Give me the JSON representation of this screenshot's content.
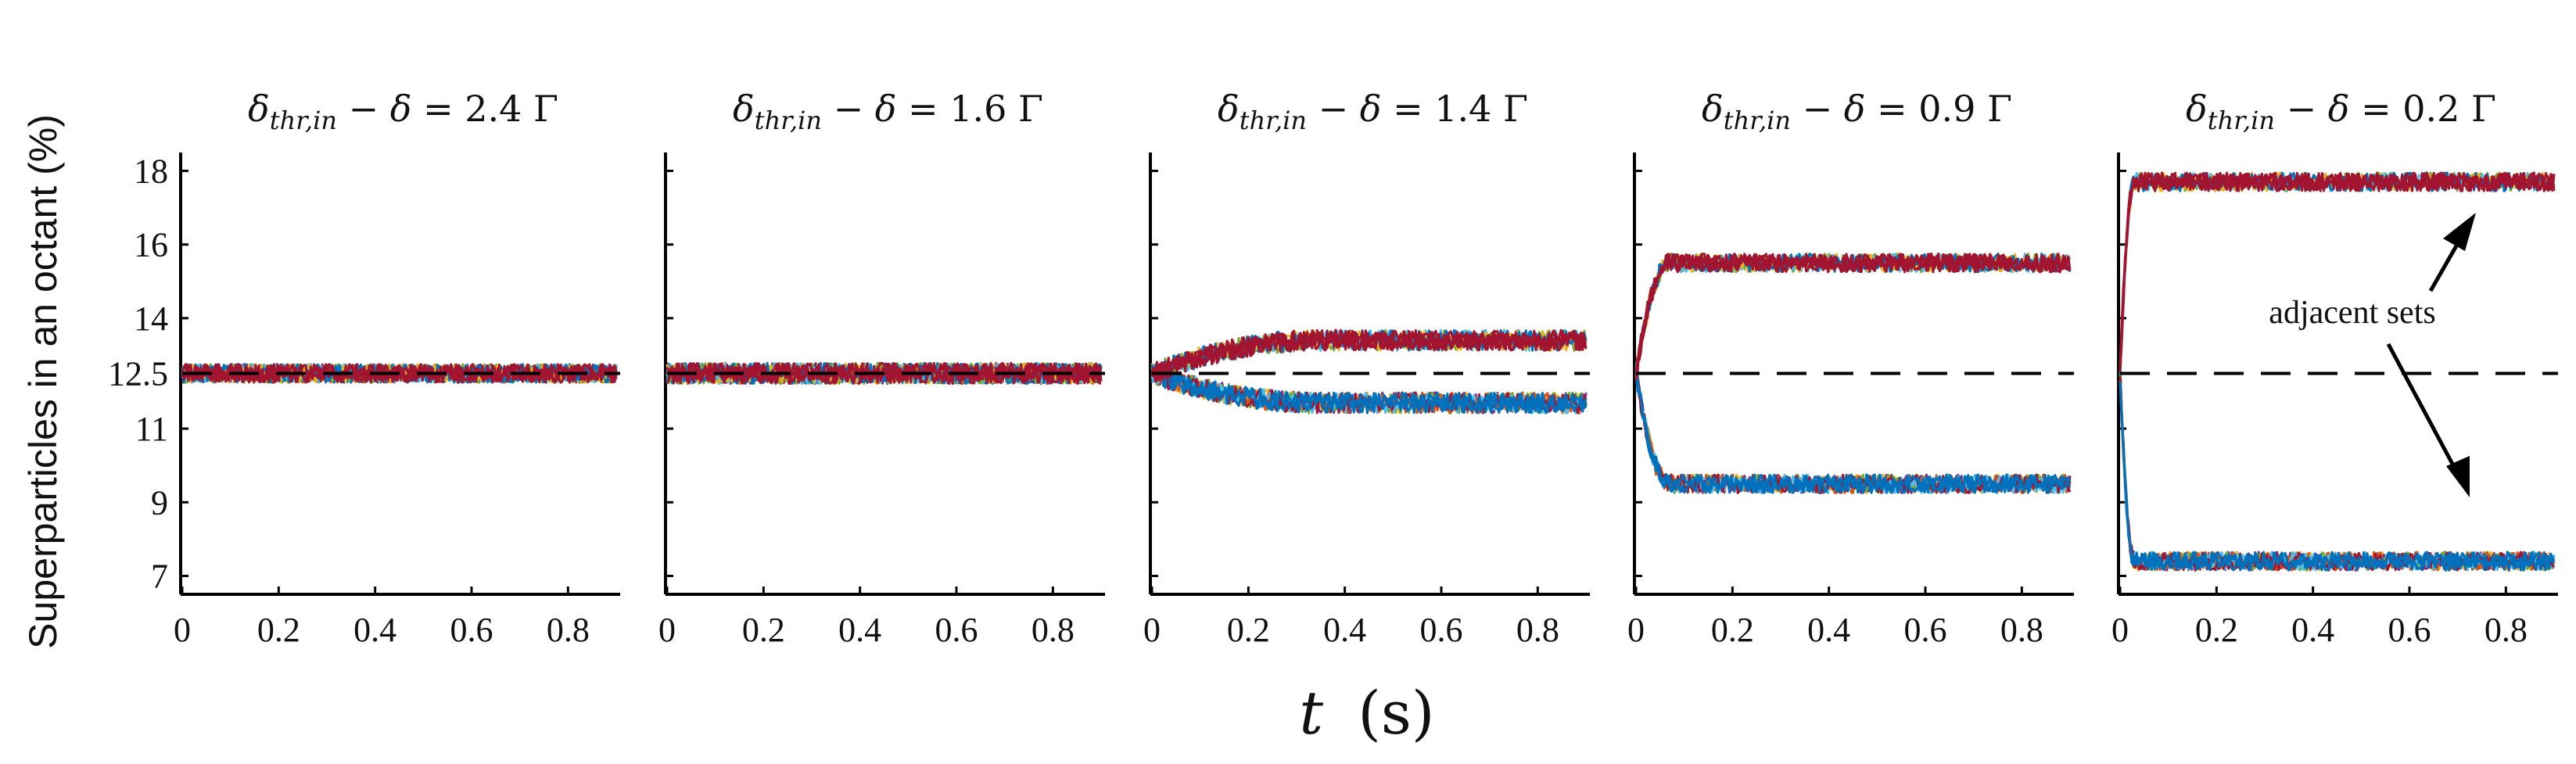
{
  "chart_data": {
    "type": "line",
    "ylabel": "Superparticles in an octant (%)",
    "xlabel_symbol": "t",
    "xlabel_unit": "(s)",
    "xlim": [
      0,
      0.9
    ],
    "ylim": [
      6.5,
      18.5
    ],
    "x_ticks": [
      "0",
      "0.2",
      "0.4",
      "0.6",
      "0.8"
    ],
    "y_ticks": [
      {
        "value": 7,
        "label": "7"
      },
      {
        "value": 9,
        "label": "9"
      },
      {
        "value": 11,
        "label": "11"
      },
      {
        "value": 12.5,
        "label": "12.5"
      },
      {
        "value": 14,
        "label": "14"
      },
      {
        "value": 16,
        "label": "16"
      },
      {
        "value": 18,
        "label": "18"
      }
    ],
    "reference_line": {
      "value": 12.5,
      "style": "dashed"
    },
    "series_colors": [
      "#0072BD",
      "#D95319",
      "#EDB120",
      "#7E2F8E",
      "#77AC30",
      "#4DBEEE",
      "#A2142F"
    ],
    "panels": [
      {
        "title": "δthr,in − δ = 2.4 Γ",
        "upper_level": 12.5,
        "lower_level": 12.5,
        "rise_time": 0.0,
        "noise": 0.25,
        "hold_upper": null,
        "hold_lower": null
      },
      {
        "title": "δthr,in − δ = 1.6 Γ",
        "upper_level": 12.5,
        "lower_level": 12.5,
        "rise_time": 0.0,
        "noise": 0.28,
        "hold_upper": null,
        "hold_lower": null
      },
      {
        "title": "δthr,in − δ = 1.4 Γ",
        "upper_level": 13.4,
        "lower_level": 11.7,
        "rise_time": 0.35,
        "noise": 0.28,
        "hold_upper": 13.2,
        "hold_lower": 11.9
      },
      {
        "title": "δthr,in − δ = 0.9 Γ",
        "upper_level": 15.5,
        "lower_level": 9.5,
        "rise_time": 0.07,
        "noise": 0.25,
        "hold_upper": null,
        "hold_lower": null
      },
      {
        "title": "δthr,in − δ = 0.2 Γ",
        "upper_level": 17.7,
        "lower_level": 7.4,
        "rise_time": 0.03,
        "noise": 0.25,
        "hold_upper": null,
        "hold_lower": null
      }
    ],
    "annotation": "adjacent sets"
  }
}
